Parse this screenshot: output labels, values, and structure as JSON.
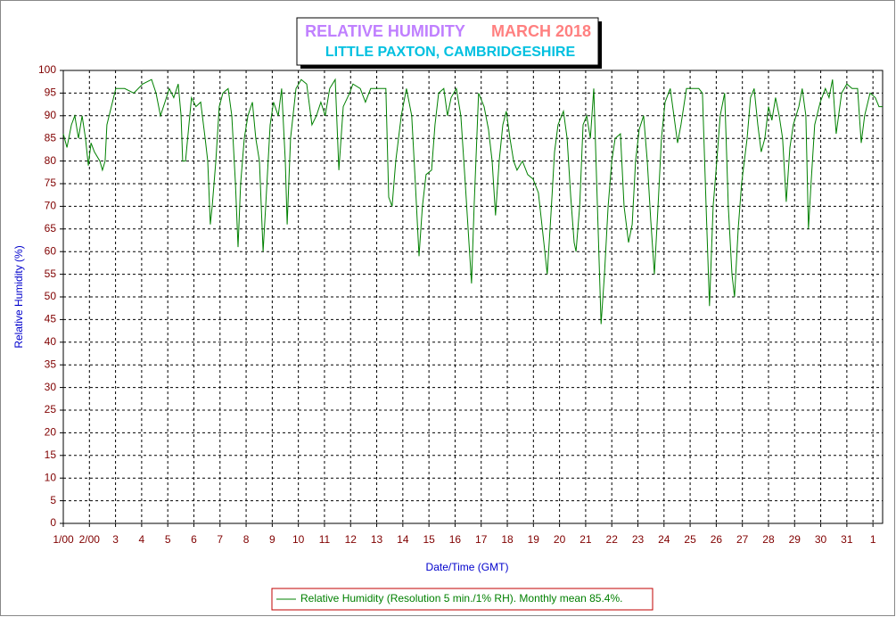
{
  "chart_data": {
    "type": "line",
    "title": "RELATIVE HUMIDITY",
    "title_date": "MARCH 2018",
    "subtitle": "LITTLE PAXTON, CAMBRIDGESHIRE",
    "x_label": "Date/Time (GMT)",
    "y_label": "Relative Humidity (%)",
    "xlim": [
      1,
      32.37
    ],
    "ylim": [
      0,
      100
    ],
    "xticks": [
      {
        "value": 1,
        "label": "1/00"
      },
      {
        "value": 2,
        "label": "2/00"
      },
      3,
      4,
      5,
      6,
      7,
      8,
      9,
      10,
      11,
      12,
      13,
      14,
      15,
      16,
      17,
      18,
      19,
      20,
      21,
      22,
      23,
      24,
      25,
      26,
      27,
      28,
      29,
      30,
      31,
      {
        "value": 32,
        "label": "1"
      }
    ],
    "yticks": [
      0,
      5,
      10,
      15,
      20,
      25,
      30,
      35,
      40,
      45,
      50,
      55,
      60,
      65,
      70,
      75,
      80,
      85,
      90,
      95,
      100
    ],
    "grid": true,
    "x": [
      1.0,
      1.14,
      1.31,
      1.44,
      1.58,
      1.72,
      1.85,
      1.96,
      2.06,
      2.19,
      2.4,
      2.5,
      2.6,
      2.67,
      2.84,
      3.01,
      3.35,
      3.7,
      4.04,
      4.38,
      4.55,
      4.72,
      4.89,
      5.06,
      5.23,
      5.4,
      5.51,
      5.57,
      5.68,
      5.81,
      5.91,
      6.08,
      6.26,
      6.43,
      6.53,
      6.63,
      6.7,
      6.84,
      6.97,
      7.11,
      7.31,
      7.45,
      7.59,
      7.69,
      7.79,
      7.93,
      8.07,
      8.24,
      8.37,
      8.51,
      8.65,
      8.75,
      8.92,
      9.05,
      9.23,
      9.36,
      9.5,
      9.57,
      9.7,
      9.91,
      10.11,
      10.32,
      10.52,
      10.69,
      10.86,
      11.03,
      11.2,
      11.41,
      11.55,
      11.72,
      11.96,
      12.09,
      12.37,
      12.57,
      12.77,
      13.08,
      13.35,
      13.46,
      13.59,
      13.73,
      13.94,
      14.14,
      14.34,
      14.48,
      14.62,
      14.75,
      14.89,
      15.1,
      15.23,
      15.37,
      15.57,
      15.71,
      15.85,
      16.05,
      16.22,
      16.39,
      16.53,
      16.63,
      16.73,
      16.9,
      17.11,
      17.28,
      17.42,
      17.55,
      17.69,
      17.83,
      17.96,
      18.1,
      18.24,
      18.37,
      18.58,
      18.78,
      18.99,
      19.19,
      19.4,
      19.53,
      19.67,
      19.81,
      19.94,
      20.15,
      20.29,
      20.43,
      20.56,
      20.63,
      20.77,
      20.9,
      21.04,
      21.18,
      21.31,
      21.45,
      21.59,
      21.72,
      21.86,
      22.0,
      22.13,
      22.33,
      22.47,
      22.64,
      22.78,
      22.91,
      23.05,
      23.22,
      23.36,
      23.49,
      23.63,
      23.77,
      23.9,
      24.04,
      24.24,
      24.38,
      24.52,
      24.65,
      24.86,
      25.06,
      25.33,
      25.47,
      25.61,
      25.74,
      25.88,
      26.02,
      26.15,
      26.32,
      26.46,
      26.6,
      26.7,
      26.84,
      26.97,
      27.18,
      27.31,
      27.45,
      27.59,
      27.72,
      27.86,
      28.0,
      28.13,
      28.27,
      28.41,
      28.54,
      28.68,
      28.82,
      28.95,
      29.16,
      29.29,
      29.43,
      29.53,
      29.63,
      29.77,
      29.98,
      30.18,
      30.32,
      30.45,
      30.59,
      30.8,
      31.0,
      31.2,
      31.41,
      31.55,
      31.68,
      31.89,
      32.09,
      32.23,
      32.37
    ],
    "series": [
      {
        "name": "Relative Humidity (Resolution 5 min./1% RH). Monthly mean 85.4%.",
        "color": "#008000",
        "values": [
          86,
          83,
          88,
          90,
          85,
          90,
          85,
          79,
          84,
          82,
          80,
          78,
          80,
          88,
          92,
          96,
          96,
          95,
          97,
          98,
          95,
          90,
          93,
          96,
          94,
          97,
          90,
          80,
          80,
          88,
          94,
          92,
          93,
          85,
          80,
          66,
          70,
          80,
          92,
          95,
          96,
          90,
          75,
          61,
          75,
          85,
          90,
          93,
          85,
          80,
          60,
          70,
          88,
          93,
          90,
          96,
          80,
          66,
          85,
          96,
          98,
          97,
          88,
          90,
          93,
          90,
          96,
          98,
          78,
          92,
          95,
          97,
          96,
          93,
          96,
          96,
          96,
          72,
          70,
          80,
          90,
          96,
          90,
          75,
          59,
          70,
          77,
          78,
          88,
          95,
          96,
          90,
          94,
          96,
          90,
          75,
          62,
          53,
          70,
          95,
          92,
          87,
          80,
          68,
          80,
          88,
          91,
          85,
          80,
          78,
          80,
          77,
          76,
          73,
          62,
          55,
          68,
          82,
          88,
          91,
          85,
          72,
          62,
          60,
          70,
          88,
          90,
          85,
          96,
          70,
          44,
          55,
          70,
          80,
          85,
          86,
          70,
          62,
          66,
          80,
          87,
          90,
          80,
          67,
          55,
          70,
          85,
          93,
          96,
          90,
          84,
          88,
          96,
          96,
          96,
          95,
          70,
          48,
          70,
          80,
          90,
          95,
          70,
          55,
          50,
          65,
          75,
          85,
          94,
          96,
          88,
          82,
          85,
          92,
          89,
          94,
          90,
          85,
          71,
          83,
          88,
          92,
          96,
          90,
          65,
          75,
          88,
          93,
          96,
          94,
          98,
          86,
          95,
          97,
          96,
          96,
          84,
          90,
          95,
          94,
          92,
          92
        ]
      }
    ]
  }
}
